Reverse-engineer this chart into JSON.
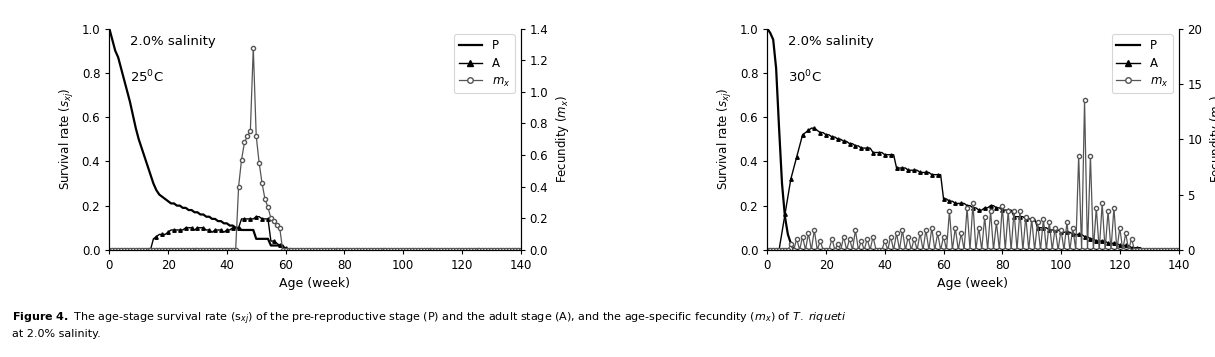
{
  "panel1": {
    "xlim": [
      0,
      140
    ],
    "ylim_left": [
      0.0,
      1.0
    ],
    "ylim_right": [
      0.0,
      1.4
    ],
    "yticks_left": [
      0.0,
      0.2,
      0.4,
      0.6,
      0.8,
      1.0
    ],
    "yticks_right": [
      0.0,
      0.2,
      0.4,
      0.6,
      0.8,
      1.0,
      1.2,
      1.4
    ],
    "xticks": [
      0,
      20,
      40,
      60,
      80,
      100,
      120,
      140
    ],
    "label_salinity": "2.0% salinity",
    "label_temp": "25$^0$C"
  },
  "panel2": {
    "xlim": [
      0,
      140
    ],
    "ylim_left": [
      0.0,
      1.0
    ],
    "ylim_right": [
      0,
      20
    ],
    "yticks_left": [
      0.0,
      0.2,
      0.4,
      0.6,
      0.8,
      1.0
    ],
    "yticks_right": [
      0,
      5,
      10,
      15,
      20
    ],
    "xticks": [
      0,
      20,
      40,
      60,
      80,
      100,
      120,
      140
    ],
    "label_salinity": "2.0% salinity",
    "label_temp": "30$^0$C"
  },
  "xlabel": "Age (week)",
  "ylabel_left": "Survival rate ($s_{xj}$)",
  "ylabel_right": "Fecundity ($m_x$)"
}
